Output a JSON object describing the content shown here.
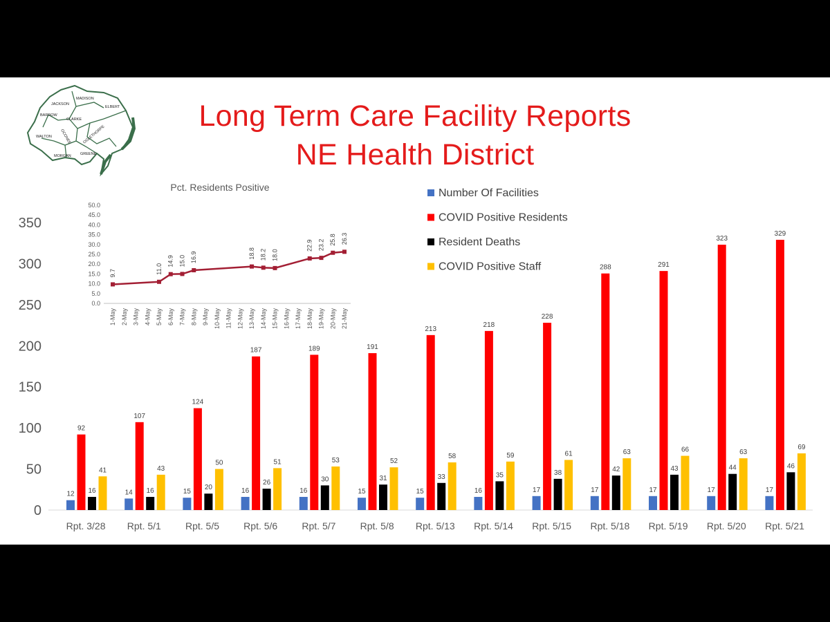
{
  "slide": {
    "title_line1": "Long Term Care Facility Reports",
    "title_line2": "NE Health District",
    "map_counties": [
      "JACKSON",
      "MADISON",
      "ELBERT",
      "BARROW",
      "CLARKE",
      "OCONEE",
      "OGLETHORPE",
      "WALTON",
      "MORGAN",
      "GREENE"
    ]
  },
  "chart_data": [
    {
      "type": "bar",
      "categories": [
        "Rpt. 3/28",
        "Rpt. 5/1",
        "Rpt. 5/5",
        "Rpt. 5/6",
        "Rpt. 5/7",
        "Rpt. 5/8",
        "Rpt. 5/13",
        "Rpt. 5/14",
        "Rpt. 5/15",
        "Rpt. 5/18",
        "Rpt. 5/19",
        "Rpt. 5/20",
        "Rpt. 5/21"
      ],
      "series": [
        {
          "name": "Number Of Facilities",
          "color": "#4472c4",
          "values": [
            12,
            14,
            15,
            16,
            16,
            15,
            15,
            16,
            17,
            17,
            17,
            17,
            17
          ]
        },
        {
          "name": "COVID Positive Residents",
          "color": "#ff0000",
          "values": [
            92,
            107,
            124,
            187,
            189,
            191,
            213,
            218,
            228,
            288,
            291,
            323,
            329
          ]
        },
        {
          "name": "Resident Deaths",
          "color": "#000000",
          "values": [
            16,
            16,
            20,
            26,
            30,
            31,
            33,
            35,
            38,
            42,
            43,
            44,
            46
          ]
        },
        {
          "name": "COVID Positive Staff",
          "color": "#ffc000",
          "values": [
            41,
            43,
            50,
            51,
            53,
            52,
            58,
            59,
            61,
            63,
            66,
            63,
            69
          ]
        }
      ],
      "yticks": [
        "0",
        "50",
        "100",
        "150",
        "200",
        "250",
        "300",
        "350"
      ],
      "ylim": [
        0,
        350
      ],
      "grid": false,
      "legend": "top-right"
    },
    {
      "type": "line",
      "title": "Pct. Residents Positive",
      "x": [
        "1-May",
        "2-May",
        "3-May",
        "4-May",
        "5-May",
        "6-May",
        "7-May",
        "8-May",
        "9-May",
        "10-May",
        "11-May",
        "12-May",
        "13-May",
        "14-May",
        "15-May",
        "16-May",
        "17-May",
        "18-May",
        "19-May",
        "20-May",
        "21-May"
      ],
      "values": [
        9.7,
        null,
        null,
        null,
        11.0,
        14.9,
        15.0,
        16.9,
        null,
        null,
        null,
        null,
        18.8,
        18.2,
        18.0,
        null,
        null,
        22.9,
        23.2,
        25.8,
        26.3
      ],
      "labels": [
        "9.7",
        "",
        "",
        "",
        "11.0",
        "14.9",
        "15.0",
        "16.9",
        "",
        "",
        "",
        "",
        "18.8",
        "18.2",
        "18.0",
        "",
        "",
        "22.9",
        "23.2",
        "25.8",
        "26.3"
      ],
      "yticks": [
        "0.0",
        "5.0",
        "10.0",
        "15.0",
        "20.0",
        "25.0",
        "30.0",
        "35.0",
        "40.0",
        "45.0",
        "50.0"
      ],
      "ylim": [
        0,
        50
      ],
      "color": "#a31f34"
    }
  ]
}
